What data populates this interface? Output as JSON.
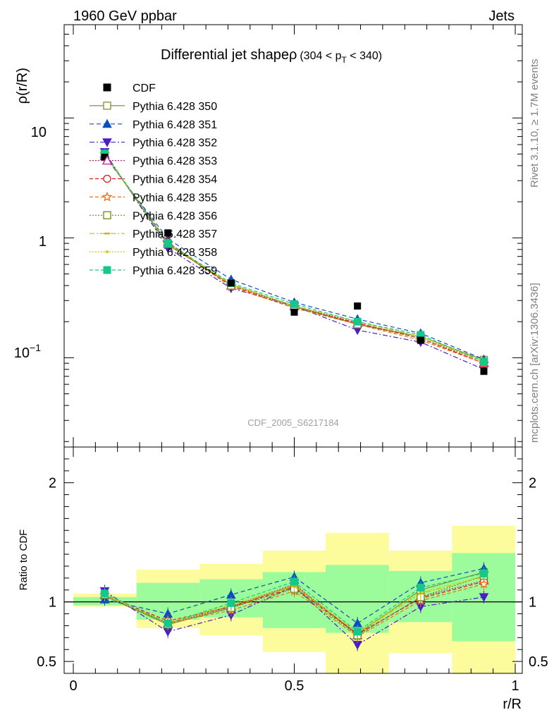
{
  "header": {
    "left": "1960 GeV ppbar",
    "right": "Jets"
  },
  "side_text": {
    "rivet": "Rivet 3.1.10, ≥ 1.7M events",
    "mcplots": "mcplots.cern.ch [arXiv:1306.3436]"
  },
  "top_panel": {
    "title_main": "Differential jet shapeρ",
    "title_range": "(304 < p",
    "title_sub": "T",
    "title_end": " < 340)",
    "ylabel": "ρ(r/R)",
    "watermark": "CDF_2005_S6217184",
    "ytick_labels": {
      "t10": "10",
      "t1": "1",
      "t01_base": "10",
      "t01_exp": "−1"
    }
  },
  "bottom_panel": {
    "ylabel": "Ratio to CDF",
    "ytick_labels": [
      "2",
      "1",
      "0.5"
    ]
  },
  "xaxis": {
    "label": "r/R",
    "tick_labels": [
      "0",
      "0.5",
      "1"
    ]
  },
  "chart_data": [
    {
      "type": "line",
      "panel": "main",
      "ylog": true,
      "xlim": [
        0,
        1
      ],
      "ylim": [
        0.018,
        60
      ],
      "x": [
        0.071,
        0.214,
        0.357,
        0.5,
        0.643,
        0.786,
        0.929
      ],
      "data": {
        "name": "CDF",
        "y": [
          4.7,
          1.1,
          0.42,
          0.24,
          0.27,
          0.14,
          0.077
        ]
      },
      "series": [
        {
          "name": "Pythia 6.428 350",
          "color": "#8c8c32",
          "marker": "square-open",
          "dash": "",
          "y": [
            5.0,
            0.87,
            0.41,
            0.27,
            0.19,
            0.15,
            0.096
          ]
        },
        {
          "name": "Pythia 6.428 351",
          "color": "#0f4cbf",
          "marker": "triangle-up",
          "dash": "6,4",
          "y": [
            4.8,
            0.98,
            0.45,
            0.29,
            0.21,
            0.16,
            0.097
          ]
        },
        {
          "name": "Pythia 6.428 352",
          "color": "#4b1ec8",
          "marker": "triangle-down",
          "dash": "7,3,2,3",
          "y": [
            5.2,
            0.82,
            0.38,
            0.27,
            0.17,
            0.135,
            0.08
          ]
        },
        {
          "name": "Pythia 6.428 353",
          "color": "#c8198c",
          "marker": "triangle-up-open",
          "dash": "2,2",
          "y": [
            5.0,
            0.9,
            0.4,
            0.27,
            0.195,
            0.145,
            0.09
          ]
        },
        {
          "name": "Pythia 6.428 354",
          "color": "#e61414",
          "marker": "circle-open",
          "dash": "5,3",
          "y": [
            5.0,
            0.92,
            0.4,
            0.26,
            0.195,
            0.145,
            0.09
          ]
        },
        {
          "name": "Pythia 6.428 355",
          "color": "#f06e14",
          "marker": "star-open",
          "dash": "5,3",
          "y": [
            5.0,
            0.9,
            0.39,
            0.26,
            0.19,
            0.14,
            0.09
          ]
        },
        {
          "name": "Pythia 6.428 356",
          "color": "#6e8c14",
          "marker": "square-open",
          "dash": "2,2",
          "y": [
            4.95,
            0.89,
            0.4,
            0.265,
            0.19,
            0.145,
            0.093
          ]
        },
        {
          "name": "Pythia 6.428 357",
          "color": "#d2b40a",
          "marker": "dash-dot",
          "dash": "7,3,2,3",
          "y": [
            5.0,
            0.9,
            0.41,
            0.27,
            0.2,
            0.15,
            0.092
          ]
        },
        {
          "name": "Pythia 6.428 358",
          "color": "#c8d20a",
          "marker": "dot",
          "dash": "2,2",
          "y": [
            5.0,
            0.91,
            0.41,
            0.27,
            0.2,
            0.15,
            0.093
          ]
        },
        {
          "name": "Pythia 6.428 359",
          "color": "#14c88c",
          "marker": "square",
          "dash": "5,3",
          "y": [
            5.05,
            0.9,
            0.42,
            0.28,
            0.2,
            0.155,
            0.093
          ]
        }
      ]
    },
    {
      "type": "line",
      "panel": "ratio",
      "xlim": [
        0,
        1
      ],
      "ylim": [
        0.4,
        2.3
      ],
      "ylabel": "Ratio to CDF",
      "bands": {
        "edges": [
          0,
          0.143,
          0.286,
          0.429,
          0.571,
          0.714,
          0.857,
          1.0
        ],
        "inner": [
          [
            0.97,
            1.04
          ],
          [
            0.85,
            1.16
          ],
          [
            0.87,
            1.19
          ],
          [
            0.78,
            1.25
          ],
          [
            0.74,
            1.31
          ],
          [
            0.83,
            1.26
          ],
          [
            0.67,
            1.41
          ]
        ],
        "outer": [
          [
            0.96,
            1.07
          ],
          [
            0.78,
            1.27
          ],
          [
            0.72,
            1.32
          ],
          [
            0.58,
            1.43
          ],
          [
            0.38,
            1.58
          ],
          [
            0.57,
            1.43
          ],
          [
            0.38,
            1.64
          ]
        ],
        "inner_color": "#9cfc9c",
        "outer_color": "#fcfc9c"
      },
      "series": [
        {
          "name": "Pythia 6.428 350",
          "y": [
            1.05,
            0.81,
            0.95,
            1.14,
            0.73,
            1.1,
            1.25
          ]
        },
        {
          "name": "Pythia 6.428 351",
          "y": [
            1.02,
            0.9,
            1.06,
            1.21,
            0.82,
            1.16,
            1.28
          ]
        },
        {
          "name": "Pythia 6.428 352",
          "y": [
            1.09,
            0.75,
            0.89,
            1.13,
            0.64,
            0.96,
            1.04
          ]
        },
        {
          "name": "Pythia 6.428 353",
          "y": [
            1.06,
            0.82,
            0.96,
            1.15,
            0.72,
            1.04,
            1.18
          ]
        },
        {
          "name": "Pythia 6.428 354",
          "y": [
            1.06,
            0.84,
            0.96,
            1.12,
            0.73,
            1.03,
            1.17
          ]
        },
        {
          "name": "Pythia 6.428 355",
          "y": [
            1.06,
            0.82,
            0.93,
            1.09,
            0.71,
            1.01,
            1.15
          ]
        },
        {
          "name": "Pythia 6.428 356",
          "y": [
            1.06,
            0.81,
            0.95,
            1.11,
            0.72,
            1.04,
            1.22
          ]
        },
        {
          "name": "Pythia 6.428 357",
          "y": [
            1.06,
            0.82,
            0.97,
            1.13,
            0.74,
            1.07,
            1.21
          ]
        },
        {
          "name": "Pythia 6.428 358",
          "y": [
            1.06,
            0.83,
            0.98,
            1.14,
            0.75,
            1.08,
            1.22
          ]
        },
        {
          "name": "Pythia 6.428 359",
          "y": [
            1.07,
            0.82,
            0.99,
            1.17,
            0.75,
            1.12,
            1.24
          ]
        }
      ]
    }
  ]
}
